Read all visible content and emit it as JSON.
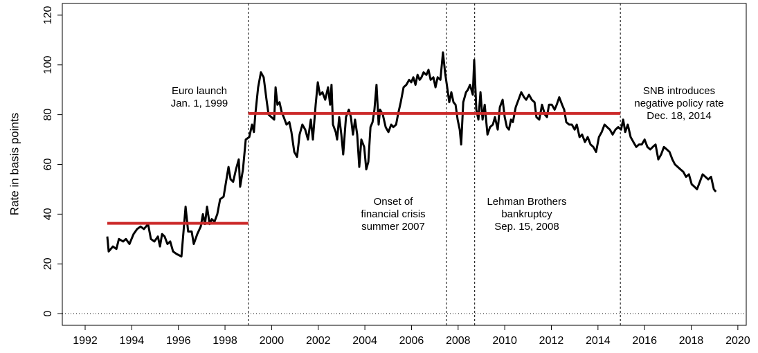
{
  "chart_data": {
    "type": "line",
    "ylabel": "Rate in basis points",
    "xlim": [
      1991.02,
      2020.36
    ],
    "ylim": [
      -4.7,
      124.7
    ],
    "xticks": [
      1992,
      1994,
      1996,
      1998,
      2000,
      2002,
      2004,
      2006,
      2008,
      2010,
      2012,
      2014,
      2016,
      2018,
      2020
    ],
    "yticks": [
      0,
      20,
      40,
      60,
      80,
      100,
      120
    ],
    "zero_line": 0,
    "series": [
      {
        "color": "#000000",
        "x": [
          1992.95,
          1993.01,
          1993.19,
          1993.34,
          1993.45,
          1993.63,
          1993.75,
          1993.9,
          1994.08,
          1994.23,
          1994.38,
          1994.52,
          1994.7,
          1994.82,
          1994.97,
          1995.12,
          1995.21,
          1995.3,
          1995.41,
          1995.53,
          1995.65,
          1995.77,
          1995.92,
          1996.13,
          1996.31,
          1996.42,
          1996.57,
          1996.66,
          1996.81,
          1996.96,
          1997.05,
          1997.14,
          1997.23,
          1997.34,
          1997.43,
          1997.55,
          1997.67,
          1997.79,
          1997.94,
          1998.15,
          1998.24,
          1998.35,
          1998.47,
          1998.59,
          1998.65,
          1998.77,
          1998.89,
          1999.04,
          1999.16,
          1999.24,
          1999.3,
          1999.42,
          1999.54,
          1999.66,
          1999.78,
          1999.87,
          1999.99,
          2000.11,
          2000.17,
          2000.25,
          2000.34,
          2000.43,
          2000.52,
          2000.64,
          2000.76,
          2000.85,
          2000.97,
          2001.09,
          2001.2,
          2001.32,
          2001.44,
          2001.56,
          2001.68,
          2001.77,
          2001.89,
          2001.98,
          2002.07,
          2002.18,
          2002.3,
          2002.42,
          2002.51,
          2002.57,
          2002.63,
          2002.75,
          2002.81,
          2002.9,
          2002.99,
          2003.07,
          2003.19,
          2003.31,
          2003.4,
          2003.49,
          2003.58,
          2003.67,
          2003.76,
          2003.85,
          2003.97,
          2004.06,
          2004.15,
          2004.24,
          2004.33,
          2004.41,
          2004.5,
          2004.59,
          2004.65,
          2004.77,
          2004.89,
          2005.01,
          2005.13,
          2005.22,
          2005.34,
          2005.42,
          2005.54,
          2005.66,
          2005.78,
          2005.9,
          2005.99,
          2006.08,
          2006.17,
          2006.26,
          2006.35,
          2006.43,
          2006.52,
          2006.64,
          2006.73,
          2006.82,
          2006.94,
          2007.03,
          2007.12,
          2007.24,
          2007.35,
          2007.44,
          2007.53,
          2007.62,
          2007.71,
          2007.8,
          2007.89,
          2007.98,
          2008.07,
          2008.13,
          2008.22,
          2008.34,
          2008.42,
          2008.51,
          2008.63,
          2008.69,
          2008.78,
          2008.87,
          2008.96,
          2009.05,
          2009.14,
          2009.26,
          2009.37,
          2009.49,
          2009.58,
          2009.7,
          2009.79,
          2009.91,
          2010.0,
          2010.09,
          2010.18,
          2010.27,
          2010.35,
          2010.47,
          2010.59,
          2010.71,
          2010.83,
          2010.92,
          2011.04,
          2011.16,
          2011.28,
          2011.36,
          2011.48,
          2011.6,
          2011.72,
          2011.81,
          2011.9,
          2012.02,
          2012.14,
          2012.23,
          2012.34,
          2012.46,
          2012.55,
          2012.64,
          2012.76,
          2012.88,
          2013.0,
          2013.09,
          2013.21,
          2013.32,
          2013.44,
          2013.56,
          2013.68,
          2013.8,
          2013.92,
          2014.04,
          2014.16,
          2014.28,
          2014.39,
          2014.51,
          2014.63,
          2014.75,
          2014.87,
          2014.99,
          2015.08,
          2015.17,
          2015.28,
          2015.4,
          2015.52,
          2015.64,
          2015.76,
          2015.88,
          2016.0,
          2016.12,
          2016.24,
          2016.35,
          2016.47,
          2016.59,
          2016.71,
          2016.83,
          2016.95,
          2017.07,
          2017.19,
          2017.3,
          2017.42,
          2017.54,
          2017.66,
          2017.78,
          2017.9,
          2018.02,
          2018.14,
          2018.25,
          2018.37,
          2018.49,
          2018.61,
          2018.73,
          2018.85,
          2018.97,
          2019.06
        ],
        "values": [
          31,
          25,
          27,
          26,
          30,
          29,
          30,
          28,
          32,
          34,
          35,
          34,
          36,
          30,
          29,
          31,
          27,
          32,
          31,
          28,
          29,
          25,
          24,
          23,
          43,
          33,
          33,
          28,
          32,
          35,
          40,
          36,
          43,
          36,
          38,
          37,
          40,
          46,
          47,
          59,
          54,
          53,
          58,
          62,
          51,
          58,
          70,
          71,
          76,
          73,
          80,
          91,
          97,
          95,
          86,
          80,
          79,
          78,
          91,
          84,
          85,
          81,
          79,
          76,
          77,
          73,
          65,
          63,
          72,
          76,
          74,
          70,
          78,
          70,
          84,
          93,
          88,
          89,
          86,
          91,
          84,
          92,
          76,
          73,
          70,
          79,
          72,
          64,
          79,
          82,
          79,
          72,
          78,
          72,
          59,
          70,
          67,
          58,
          61,
          75,
          77,
          82,
          92,
          76,
          82,
          80,
          75,
          73,
          76,
          75,
          76,
          80,
          85,
          91,
          92,
          94,
          93,
          95,
          92,
          96,
          94,
          95,
          97,
          96,
          98,
          94,
          95,
          91,
          95,
          94,
          105,
          97,
          91,
          85,
          89,
          85,
          84,
          78,
          74,
          68,
          85,
          89,
          90,
          92,
          88,
          102,
          82,
          78,
          89,
          78,
          84,
          72,
          75,
          76,
          79,
          74,
          83,
          86,
          79,
          75,
          74,
          78,
          77,
          83,
          86,
          89,
          87,
          86,
          88,
          86,
          85,
          79,
          78,
          84,
          80,
          79,
          84,
          84,
          82,
          84,
          87,
          84,
          82,
          77,
          76,
          76,
          74,
          76,
          71,
          72,
          69,
          71,
          68,
          67,
          65,
          71,
          73,
          76,
          75,
          74,
          72,
          74,
          75,
          74,
          78,
          73,
          76,
          71,
          69,
          67,
          68,
          68,
          70,
          67,
          66,
          67,
          68,
          62,
          64,
          67,
          66,
          65,
          62,
          60,
          59,
          58,
          57,
          55,
          56,
          52,
          51,
          50,
          53,
          56,
          55,
          54,
          55,
          50,
          49
        ]
      }
    ],
    "mean_lines": [
      {
        "color": "#cc2a2a",
        "x": [
          1992.95,
          1999.0
        ],
        "value": 36.3
      },
      {
        "color": "#cc2a2a",
        "x": [
          1999.0,
          2014.96
        ],
        "value": 80.5
      }
    ],
    "events": [
      {
        "x": 1999.0,
        "label": [
          "Euro launch",
          "Jan. 1, 1999"
        ]
      },
      {
        "x": 2007.5,
        "label": [
          "Onset of",
          "financial crisis",
          "summer 2007"
        ]
      },
      {
        "x": 2008.71,
        "label": [
          "Lehman Brothers",
          "bankruptcy",
          "Sep. 15, 2008"
        ]
      },
      {
        "x": 2014.96,
        "label": [
          "SNB introduces",
          "negative policy rate",
          "Dec. 18, 2014"
        ]
      }
    ]
  }
}
